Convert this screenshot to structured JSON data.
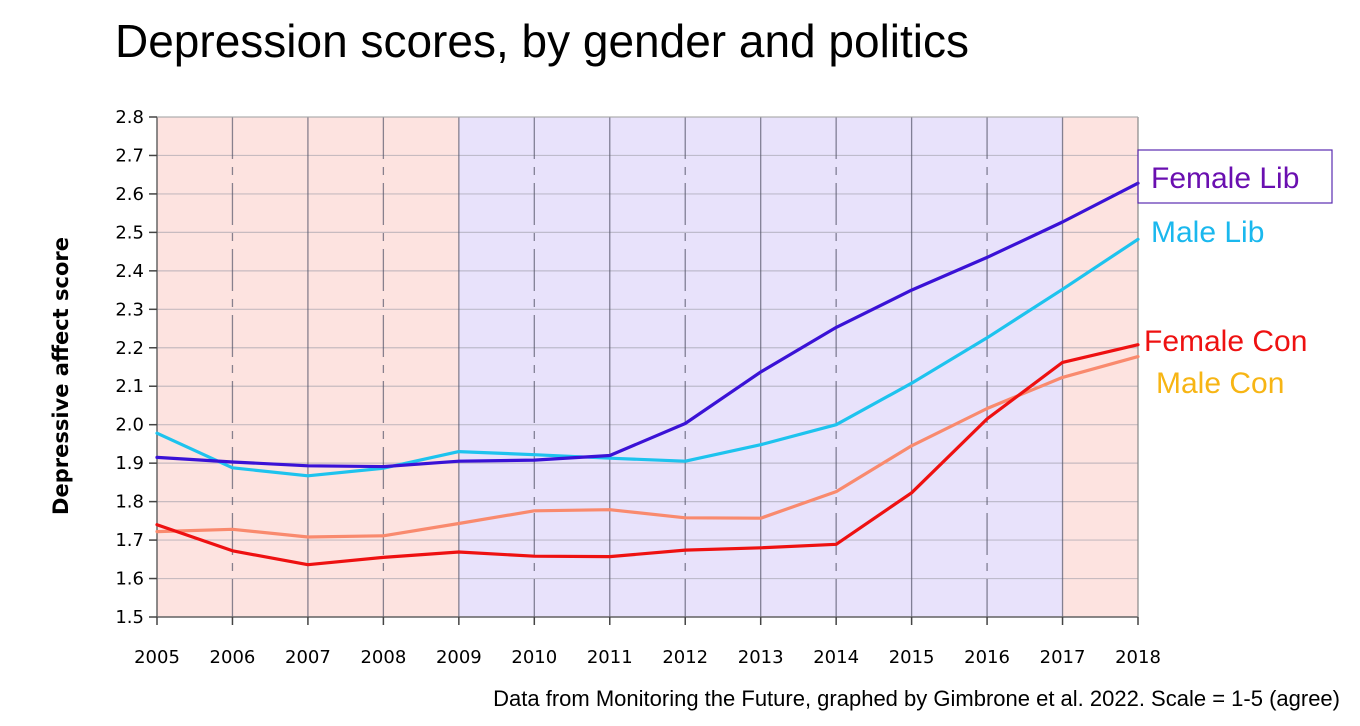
{
  "title": "Depression scores, by gender and politics",
  "source_note": "Data from Monitoring the Future, graphed by Gimbrone et al. 2022. Scale = 1-5 (agree)",
  "chart_data": {
    "type": "line",
    "title": "Depression scores, by gender and politics",
    "xlabel": "",
    "ylabel": "Depressive affect score",
    "x": [
      2005,
      2006,
      2007,
      2008,
      2009,
      2010,
      2011,
      2012,
      2013,
      2014,
      2015,
      2016,
      2017,
      2018
    ],
    "xlim": [
      2005,
      2018
    ],
    "ylim": [
      1.5,
      2.8
    ],
    "yticks": [
      "1.5",
      "1.6",
      "1.7",
      "1.8",
      "1.9",
      "2.0",
      "2.1",
      "2.2",
      "2.3",
      "2.4",
      "2.5",
      "2.6",
      "2.7",
      "2.8"
    ],
    "grid": true,
    "background_bands": [
      {
        "from": 2005,
        "to": 2009,
        "color": "#fde3e0"
      },
      {
        "from": 2009,
        "to": 2017,
        "color": "#e8e2fb"
      },
      {
        "from": 2017,
        "to": 2018,
        "color": "#fde3e0"
      }
    ],
    "series": [
      {
        "name": "Female Lib",
        "color": "#3a12d6",
        "label_color": "#6a0fb0",
        "values": [
          1.915,
          1.903,
          1.893,
          1.891,
          1.905,
          1.908,
          1.92,
          2.003,
          2.137,
          2.253,
          2.35,
          2.435,
          2.527,
          2.628
        ]
      },
      {
        "name": "Male Lib",
        "color": "#1ec3ee",
        "label_color": "#1ab8ee",
        "values": [
          1.978,
          1.888,
          1.867,
          1.887,
          1.93,
          1.922,
          1.913,
          1.905,
          1.948,
          2.0,
          2.108,
          2.226,
          2.352,
          2.482
        ]
      },
      {
        "name": "Female Con",
        "color": "#ee1111",
        "label_color": "#ee1111",
        "values": [
          1.74,
          1.672,
          1.636,
          1.655,
          1.669,
          1.658,
          1.657,
          1.674,
          1.68,
          1.689,
          1.823,
          2.015,
          2.162,
          2.208
        ]
      },
      {
        "name": "Male Con",
        "color": "#f98a6e",
        "label_color": "#f7b514",
        "values": [
          1.722,
          1.728,
          1.708,
          1.711,
          1.743,
          1.776,
          1.779,
          1.758,
          1.757,
          1.826,
          1.945,
          2.042,
          2.123,
          2.177
        ]
      }
    ]
  }
}
